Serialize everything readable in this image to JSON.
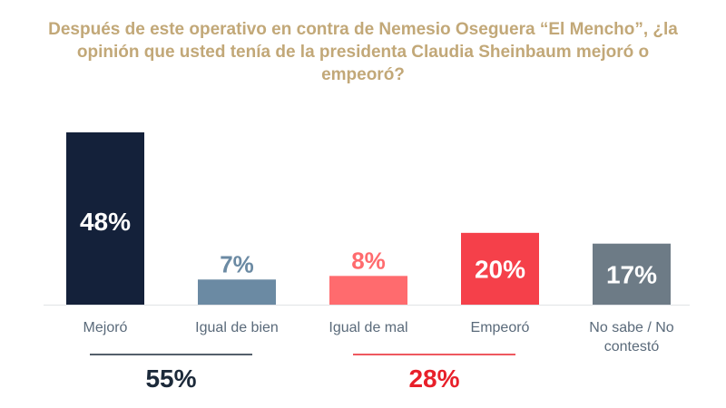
{
  "title": "Después de este operativo en contra de Nemesio Oseguera “El Mencho”, ¿la opinión que usted tenía de la presidenta Claudia Sheinbaum mejoró o empeoró?",
  "chart_data": {
    "type": "bar",
    "title": "Después de este operativo en contra de Nemesio Oseguera “El Mencho”, ¿la opinión que usted tenía de la presidenta Claudia Sheinbaum mejoró o empeoró?",
    "categories": [
      "Mejoró",
      "Igual de bien",
      "Igual de mal",
      "Empeoró",
      "No sabe / No contestó"
    ],
    "category_lines": [
      [
        "Mejoró"
      ],
      [
        "Igual de bien"
      ],
      [
        "Igual de mal"
      ],
      [
        "Empeoró"
      ],
      [
        "No sabe / No",
        "contestó"
      ]
    ],
    "values": [
      48,
      7,
      8,
      20,
      17
    ],
    "value_labels": [
      "48%",
      "7%",
      "8%",
      "20%",
      "17%"
    ],
    "label_inside": [
      true,
      false,
      false,
      true,
      true
    ],
    "colors": [
      "#14213a",
      "#6b8aa3",
      "#ff6b6e",
      "#f5404a",
      "#6d7b86"
    ],
    "label_colors": [
      "#ffffff",
      "#6b8aa3",
      "#ff6b6e",
      "#ffffff",
      "#ffffff"
    ],
    "ylim": [
      0,
      48
    ],
    "xlabel": "",
    "ylabel": "",
    "groups": [
      {
        "label": "55%",
        "value": 55,
        "members": [
          0,
          1
        ],
        "color": "#1c2a3a"
      },
      {
        "label": "28%",
        "value": 28,
        "members": [
          2,
          3
        ],
        "color": "#e8202a"
      }
    ]
  }
}
